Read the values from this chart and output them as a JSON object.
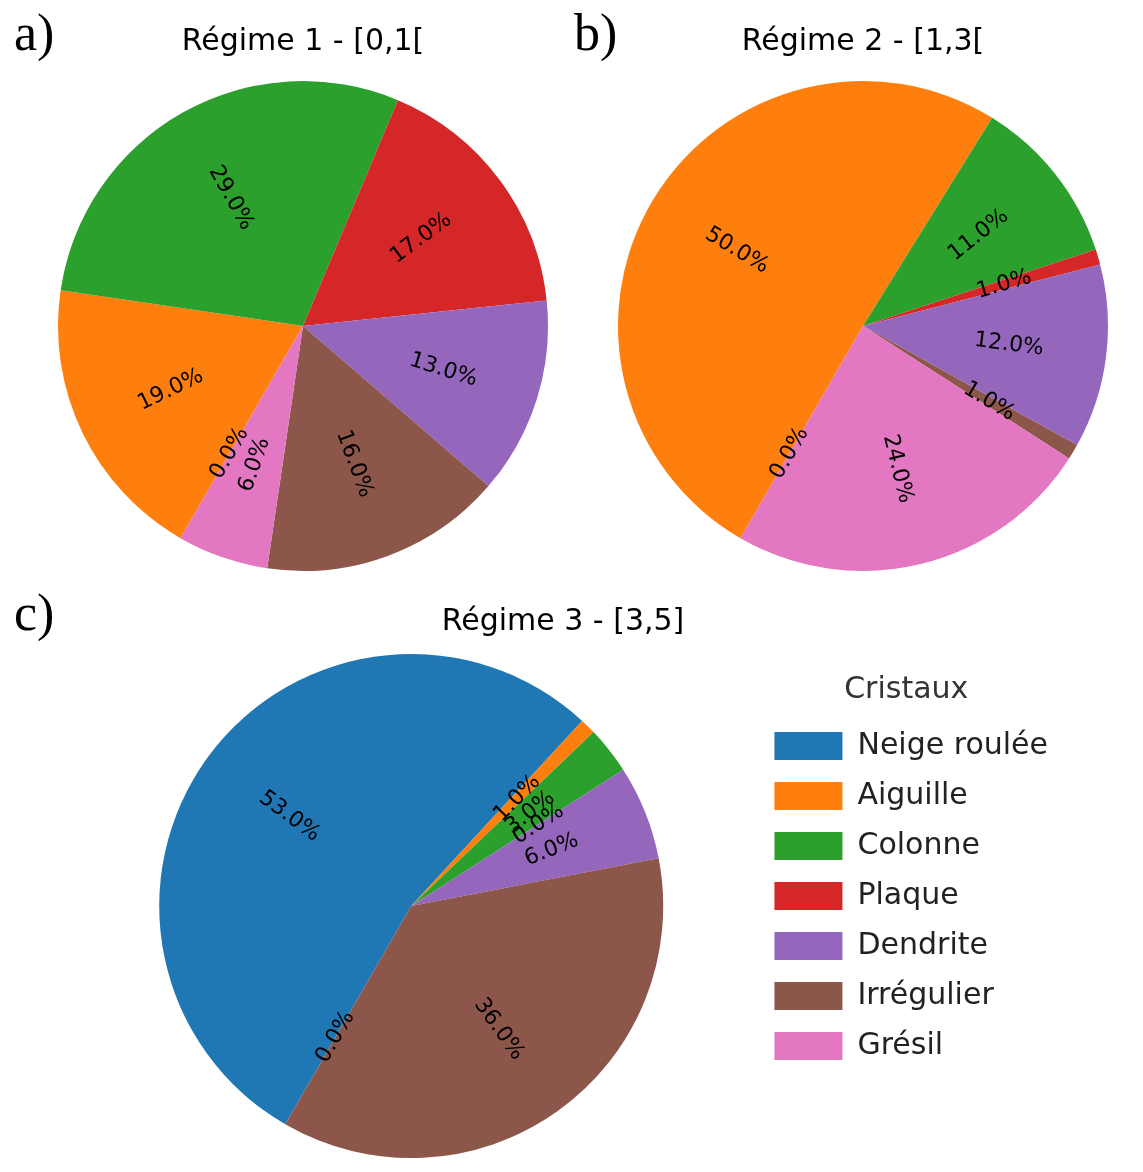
{
  "chart_data": [
    {
      "type": "pie",
      "title": "Régime 1 - [0,1[",
      "annotations": [
        "a)"
      ],
      "categories": [
        null,
        null,
        null,
        null,
        null,
        null,
        null
      ],
      "values": [
        0,
        19,
        29,
        17,
        13,
        16,
        6
      ],
      "value_labels": [
        "0.0%",
        "19.0%",
        "29.0%",
        "17.0%",
        "13.0%",
        "16.0%",
        "6.0%"
      ],
      "colors": [
        "#1f77b4",
        "#ff7f0e",
        "#2ca02c",
        "#d62728",
        "#9467bd",
        "#8c564b",
        "#e377c2"
      ],
      "legend": false
    },
    {
      "type": "pie",
      "title": "Régime 2 - [1,3[",
      "annotations": [
        "b)"
      ],
      "categories": [
        null,
        null,
        null,
        null,
        null,
        null,
        null
      ],
      "values": [
        0,
        50,
        11,
        1,
        12,
        1,
        24
      ],
      "value_labels": [
        "0.0%",
        "50.0%",
        "11.0%",
        "1.0%",
        "12.0%",
        "1.0%",
        "24.0%"
      ],
      "colors": [
        "#1f77b4",
        "#ff7f0e",
        "#2ca02c",
        "#d62728",
        "#9467bd",
        "#8c564b",
        "#e377c2"
      ],
      "legend": false
    },
    {
      "type": "pie",
      "title": "Régime 3 - [3,5]",
      "annotations": [
        "c)"
      ],
      "categories": [
        "Neige roulée",
        "Aiguille",
        "Colonne",
        "Plaque",
        "Dendrite",
        "Irrégulier",
        "Grésil"
      ],
      "values": [
        53,
        1,
        3,
        0,
        6,
        36,
        0
      ],
      "value_labels": [
        "53.0%",
        "1.0%",
        "3.0%",
        "0.0%",
        "6.0%",
        "36.0%",
        "0.0%"
      ],
      "colors": [
        "#1f77b4",
        "#ff7f0e",
        "#2ca02c",
        "#d62728",
        "#9467bd",
        "#8c564b",
        "#e377c2"
      ],
      "legend": "right",
      "legend_title": "Cristaux"
    }
  ]
}
